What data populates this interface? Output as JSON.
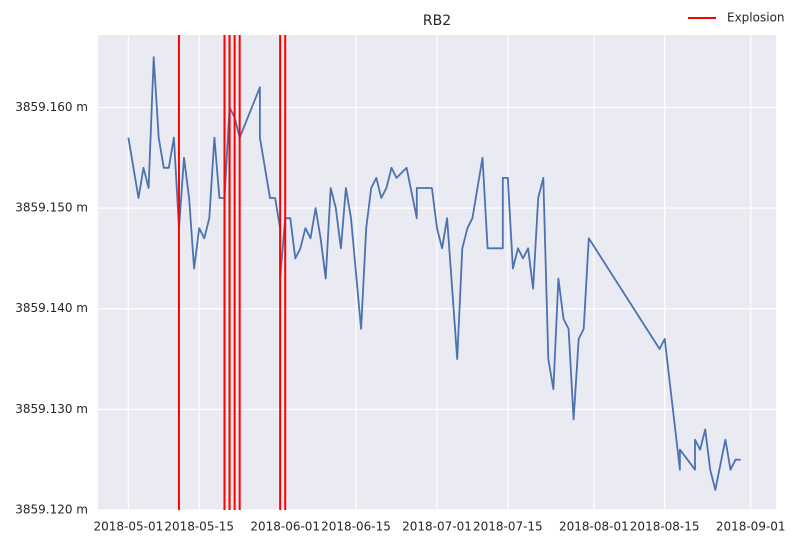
{
  "chart_data": {
    "type": "line",
    "title": "RB2",
    "x": [
      "2018-05-01",
      "2018-05-03",
      "2018-05-04",
      "2018-05-05",
      "2018-05-06",
      "2018-05-07",
      "2018-05-08",
      "2018-05-09",
      "2018-05-10",
      "2018-05-11",
      "2018-05-12",
      "2018-05-13",
      "2018-05-14",
      "2018-05-15",
      "2018-05-16",
      "2018-05-17",
      "2018-05-18",
      "2018-05-19",
      "2018-05-20",
      "2018-05-21",
      "2018-05-22",
      "2018-05-23",
      "2018-05-27",
      "2018-05-27",
      "2018-05-29",
      "2018-05-30",
      "2018-05-31",
      "2018-05-31",
      "2018-06-01",
      "2018-06-02",
      "2018-06-03",
      "2018-06-04",
      "2018-06-05",
      "2018-06-06",
      "2018-06-07",
      "2018-06-08",
      "2018-06-09",
      "2018-06-10",
      "2018-06-11",
      "2018-06-12",
      "2018-06-13",
      "2018-06-14",
      "2018-06-16",
      "2018-06-17",
      "2018-06-18",
      "2018-06-19",
      "2018-06-20",
      "2018-06-21",
      "2018-06-22",
      "2018-06-23",
      "2018-06-25",
      "2018-06-27",
      "2018-06-27",
      "2018-06-30",
      "2018-07-01",
      "2018-07-02",
      "2018-07-03",
      "2018-07-05",
      "2018-07-06",
      "2018-07-07",
      "2018-07-08",
      "2018-07-10",
      "2018-07-11",
      "2018-07-14",
      "2018-07-14",
      "2018-07-15",
      "2018-07-16",
      "2018-07-17",
      "2018-07-18",
      "2018-07-19",
      "2018-07-20",
      "2018-07-21",
      "2018-07-22",
      "2018-07-23",
      "2018-07-24",
      "2018-07-25",
      "2018-07-26",
      "2018-07-27",
      "2018-07-28",
      "2018-07-29",
      "2018-07-30",
      "2018-07-31",
      "2018-08-14",
      "2018-08-15",
      "2018-08-18",
      "2018-08-18",
      "2018-08-21",
      "2018-08-21",
      "2018-08-22",
      "2018-08-23",
      "2018-08-24",
      "2018-08-25",
      "2018-08-27",
      "2018-08-28",
      "2018-08-29",
      "2018-08-30"
    ],
    "series": [
      {
        "color": "#4c72b0",
        "values": [
          3859.157,
          3859.151,
          3859.154,
          3859.152,
          3859.165,
          3859.157,
          3859.154,
          3859.154,
          3859.157,
          3859.148,
          3859.155,
          3859.151,
          3859.144,
          3859.148,
          3859.147,
          3859.149,
          3859.157,
          3859.151,
          3859.151,
          3859.16,
          3859.159,
          3859.157,
          3859.162,
          3859.157,
          3859.151,
          3859.151,
          3859.148,
          3859.143,
          3859.149,
          3859.149,
          3859.145,
          3859.146,
          3859.148,
          3859.147,
          3859.15,
          3859.147,
          3859.143,
          3859.152,
          3859.15,
          3859.146,
          3859.152,
          3859.149,
          3859.138,
          3859.148,
          3859.152,
          3859.153,
          3859.151,
          3859.152,
          3859.154,
          3859.153,
          3859.154,
          3859.149,
          3859.152,
          3859.152,
          3859.148,
          3859.146,
          3859.149,
          3859.135,
          3859.146,
          3859.148,
          3859.149,
          3859.155,
          3859.146,
          3859.146,
          3859.153,
          3859.153,
          3859.144,
          3859.146,
          3859.145,
          3859.146,
          3859.142,
          3859.151,
          3859.153,
          3859.135,
          3859.132,
          3859.143,
          3859.139,
          3859.138,
          3859.129,
          3859.137,
          3859.138,
          3859.147,
          3859.136,
          3859.137,
          3859.124,
          3859.126,
          3859.124,
          3859.127,
          3859.126,
          3859.128,
          3859.124,
          3859.122,
          3859.127,
          3859.124,
          3859.125,
          3859.125
        ]
      }
    ],
    "vlines": {
      "name": "Explosion",
      "color": "#ff0000",
      "x": [
        "2018-05-11",
        "2018-05-20",
        "2018-05-20",
        "2018-05-21",
        "2018-05-21",
        "2018-05-22",
        "2018-05-23",
        "2018-05-31",
        "2018-06-01"
      ]
    },
    "xlim": [
      "2018-04-25",
      "2018-09-06"
    ],
    "xticks": [
      "2018-05-01",
      "2018-05-15",
      "2018-06-01",
      "2018-06-15",
      "2018-07-01",
      "2018-07-15",
      "2018-08-01",
      "2018-08-15",
      "2018-09-01"
    ],
    "ylim": [
      3859.12,
      3859.1672
    ],
    "yticks": [
      {
        "value": 3859.12,
        "label": "3859.120 m"
      },
      {
        "value": 3859.13,
        "label": "3859.130 m"
      },
      {
        "value": 3859.14,
        "label": "3859.140 m"
      },
      {
        "value": 3859.15,
        "label": "3859.150 m"
      },
      {
        "value": 3859.16,
        "label": "3859.160 m"
      }
    ],
    "grid": true,
    "legend": "upper right"
  }
}
